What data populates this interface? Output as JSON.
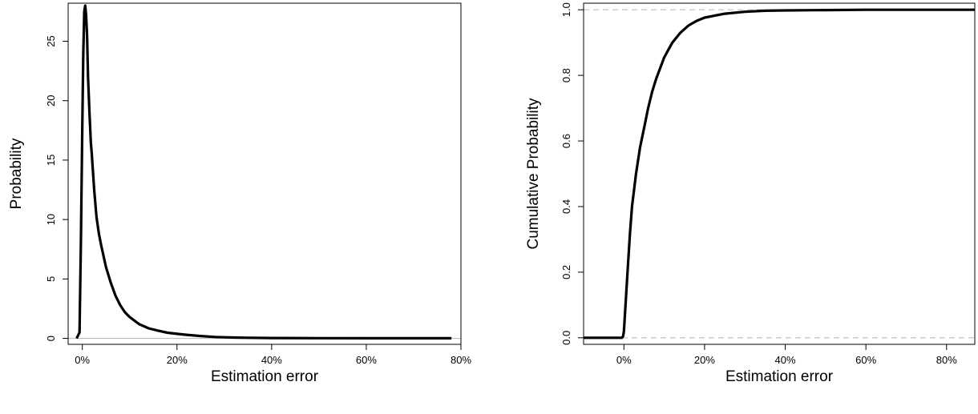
{
  "chart_data": [
    {
      "type": "line",
      "title": "",
      "xlabel": "Estimation error",
      "ylabel": "Probability",
      "xlim": [
        -3,
        80
      ],
      "ylim": [
        -0.5,
        28.2
      ],
      "x_ticks": [
        0,
        20,
        40,
        60,
        80
      ],
      "x_tick_labels": [
        "0%",
        "20%",
        "40%",
        "60%",
        "80%"
      ],
      "y_ticks": [
        0,
        5,
        10,
        15,
        20,
        25
      ],
      "y_tick_labels": [
        "0",
        "5",
        "10",
        "15",
        "20",
        "25"
      ],
      "reference_lines": [
        {
          "axis": "y",
          "value": 0,
          "color": "#bebebe",
          "style": "solid"
        }
      ],
      "grid": false,
      "series": [
        {
          "color": "#000000",
          "x": [
            -1.2,
            -0.6,
            -0.3,
            0,
            0.2,
            0.4,
            0.6,
            0.8,
            1.0,
            1.2,
            1.5,
            1.8,
            2,
            2.5,
            3,
            3.5,
            4,
            5,
            6,
            7,
            8,
            9,
            10,
            12,
            14,
            16,
            18,
            20,
            22,
            25,
            28,
            30,
            32,
            35,
            40,
            50,
            60,
            70,
            78
          ],
          "values": [
            0,
            0.5,
            8,
            18,
            24,
            27.5,
            28,
            27.2,
            25.5,
            22,
            19,
            16.5,
            15.5,
            12.5,
            10.2,
            8.8,
            7.8,
            6.0,
            4.7,
            3.6,
            2.8,
            2.2,
            1.8,
            1.2,
            0.85,
            0.65,
            0.48,
            0.38,
            0.3,
            0.2,
            0.12,
            0.09,
            0.07,
            0.05,
            0.03,
            0.02,
            0.01,
            0.01,
            0.01
          ]
        }
      ]
    },
    {
      "type": "line",
      "title": "",
      "xlabel": "Estimation error",
      "ylabel": "Cumulative Probability",
      "xlim": [
        -10,
        87
      ],
      "ylim": [
        -0.02,
        1.02
      ],
      "x_ticks": [
        0,
        20,
        40,
        60,
        80
      ],
      "x_tick_labels": [
        "0%",
        "20%",
        "40%",
        "60%",
        "80%"
      ],
      "y_ticks": [
        0,
        0.2,
        0.4,
        0.6,
        0.8,
        1.0
      ],
      "y_tick_labels": [
        "0.0",
        "0.2",
        "0.4",
        "0.6",
        "0.8",
        "1.0"
      ],
      "reference_lines": [
        {
          "axis": "y",
          "value": 0,
          "color": "#bebebe",
          "style": "dashed"
        },
        {
          "axis": "y",
          "value": 1,
          "color": "#bebebe",
          "style": "dashed"
        }
      ],
      "grid": false,
      "series": [
        {
          "color": "#000000",
          "x": [
            -10,
            -0.5,
            -0.2,
            0,
            0.5,
            1,
            1.5,
            2,
            3,
            4,
            5,
            6,
            7,
            8,
            10,
            12,
            14,
            16,
            18,
            20,
            25,
            30,
            35,
            40,
            50,
            60,
            70,
            80,
            87
          ],
          "values": [
            0,
            0,
            0.005,
            0.02,
            0.12,
            0.22,
            0.32,
            0.4,
            0.5,
            0.58,
            0.64,
            0.7,
            0.75,
            0.79,
            0.855,
            0.9,
            0.93,
            0.952,
            0.966,
            0.976,
            0.988,
            0.994,
            0.997,
            0.998,
            0.999,
            1.0,
            1.0,
            1.0,
            1.0
          ]
        }
      ]
    }
  ]
}
